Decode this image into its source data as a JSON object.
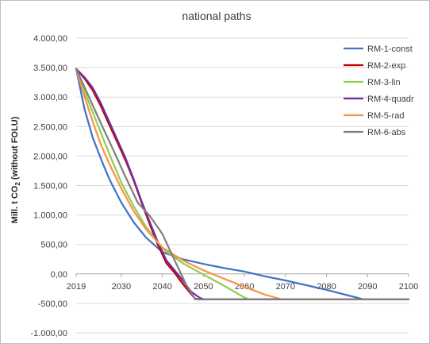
{
  "chart_data": {
    "type": "line",
    "title": "national paths",
    "ylabel": "Mill. t CO",
    "ylabel_sub": "2",
    "ylabel_suffix": " (without FOLU)",
    "xlabel": "",
    "xlim": [
      2019,
      2100
    ],
    "ylim": [
      -1000,
      4000
    ],
    "x_ticks": [
      2019,
      2030,
      2040,
      2050,
      2060,
      2070,
      2080,
      2090,
      2100
    ],
    "y_ticks": [
      4000,
      3500,
      3000,
      2500,
      2000,
      1500,
      1000,
      500,
      0,
      -500,
      -1000
    ],
    "y_tick_labels": [
      "4.000,00",
      "3.500,00",
      "3.000,00",
      "2.500,00",
      "2.000,00",
      "1.500,00",
      "1.000,00",
      "500,00",
      "0,00",
      "-500,00",
      "-1.000,00"
    ],
    "grid": "horizontal",
    "legend_position": "right",
    "series": [
      {
        "name": "RM-1-const",
        "color": "#4472C4",
        "x": [
          2019,
          2021,
          2023,
          2025,
          2027,
          2030,
          2033,
          2036,
          2040,
          2045,
          2050,
          2055,
          2060,
          2065,
          2070,
          2075,
          2080,
          2085,
          2089,
          2100
        ],
        "y": [
          3480,
          2810,
          2320,
          1960,
          1620,
          1210,
          880,
          620,
          370,
          250,
          170,
          100,
          40,
          -40,
          -110,
          -190,
          -270,
          -360,
          -430,
          -430
        ]
      },
      {
        "name": "RM-2-exp",
        "color": "#C00000",
        "x": [
          2019,
          2021,
          2023,
          2025,
          2027,
          2029,
          2031,
          2033,
          2035,
          2037,
          2039,
          2041,
          2043,
          2045,
          2047,
          2048,
          2049,
          2100
        ],
        "y": [
          3480,
          3320,
          3120,
          2850,
          2540,
          2240,
          1930,
          1590,
          1200,
          830,
          480,
          180,
          20,
          -170,
          -340,
          -420,
          -430,
          -430
        ]
      },
      {
        "name": "RM-3-lin",
        "color": "#92D050",
        "x": [
          2019,
          2021,
          2023,
          2025,
          2027,
          2030,
          2033,
          2036,
          2040,
          2045,
          2050,
          2055,
          2060,
          2061,
          2100
        ],
        "y": [
          3480,
          3100,
          2750,
          2400,
          2050,
          1550,
          1150,
          800,
          430,
          180,
          -10,
          -200,
          -400,
          -430,
          -430
        ]
      },
      {
        "name": "RM-4-quadr",
        "color": "#7030A0",
        "x": [
          2019,
          2021,
          2023,
          2025,
          2027,
          2029,
          2031,
          2033,
          2035,
          2037,
          2039,
          2041,
          2043,
          2045,
          2047,
          2049,
          2050,
          2100
        ],
        "y": [
          3480,
          3340,
          3160,
          2900,
          2590,
          2280,
          1970,
          1610,
          1220,
          870,
          520,
          230,
          60,
          -110,
          -300,
          -400,
          -430,
          -430
        ]
      },
      {
        "name": "RM-5-rad",
        "color": "#F79646",
        "x": [
          2019,
          2021,
          2023,
          2025,
          2027,
          2030,
          2033,
          2036,
          2040,
          2045,
          2050,
          2055,
          2060,
          2065,
          2069,
          2100
        ],
        "y": [
          3480,
          3020,
          2590,
          2200,
          1880,
          1450,
          1070,
          760,
          450,
          230,
          60,
          -80,
          -220,
          -350,
          -430,
          -430
        ]
      },
      {
        "name": "RM-6-abs",
        "color": "#808080",
        "x": [
          2019,
          2022,
          2025,
          2028,
          2031,
          2034,
          2037,
          2040,
          2043,
          2046,
          2048,
          2100
        ],
        "y": [
          3480,
          3020,
          2560,
          2110,
          1650,
          1210,
          980,
          680,
          230,
          -210,
          -430,
          -430
        ]
      }
    ]
  }
}
